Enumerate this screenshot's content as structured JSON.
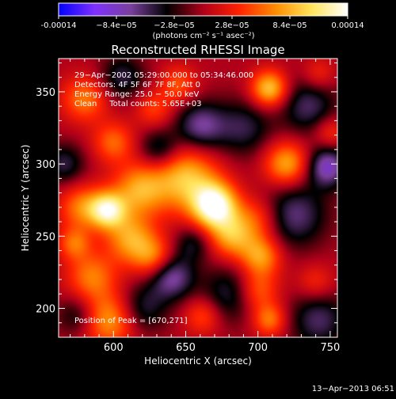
{
  "chart_data": {
    "type": "heatmap",
    "title": "Reconstructed RHESSI Image",
    "xlabel": "Heliocentric X (arcsec)",
    "ylabel": "Heliocentric Y (arcsec)",
    "xlim": [
      562,
      755
    ],
    "ylim": [
      180,
      373
    ],
    "x_ticks": [
      600,
      650,
      700,
      750
    ],
    "y_ticks": [
      200,
      250,
      300,
      350
    ],
    "x_tick_labels": [
      "600",
      "650",
      "700",
      "750"
    ],
    "y_tick_labels": [
      "200",
      "250",
      "300",
      "350"
    ],
    "colorbar": {
      "min": -0.00014,
      "max": 0.00014,
      "ticks": [
        -0.00014,
        -8.4e-05,
        -2.8e-05,
        2.8e-05,
        8.4e-05,
        0.00014
      ],
      "tick_labels": [
        "-0.00014",
        "−8.4e−05",
        "−2.8e−05",
        "2.8e−05",
        "8.4e−05",
        "0.00014"
      ],
      "unit_label": "(photons cm⁻² s⁻¹ asec⁻²)",
      "colors": [
        "#0000ff",
        "#7f30ff",
        "#7a3f9c",
        "#000000",
        "#b0001a",
        "#ff2200",
        "#ff8c00",
        "#ffe45a",
        "#ffffff"
      ]
    },
    "annotations": [
      "29−Apr−2002 05:29:00.000 to 05:34:46.000",
      "Detectors: 4F 5F 6F 7F 8F, Att 0",
      "Energy Range: 25.0 − 50.0 keV",
      "Clean     Total counts: 5.65E+03"
    ],
    "peak_label": "Position of Peak = [670,271]",
    "peak": [
      670,
      271
    ],
    "sources": [
      {
        "x": 670,
        "y": 271,
        "amp": 1.0,
        "sigma": 11
      },
      {
        "x": 650,
        "y": 290,
        "amp": 0.65,
        "sigma": 16
      },
      {
        "x": 618,
        "y": 282,
        "amp": 0.55,
        "sigma": 13
      },
      {
        "x": 596,
        "y": 268,
        "amp": 0.8,
        "sigma": 9
      },
      {
        "x": 578,
        "y": 270,
        "amp": 0.45,
        "sigma": 11
      },
      {
        "x": 612,
        "y": 248,
        "amp": 0.55,
        "sigma": 12
      },
      {
        "x": 628,
        "y": 235,
        "amp": 0.45,
        "sigma": 10
      },
      {
        "x": 682,
        "y": 250,
        "amp": 0.55,
        "sigma": 11
      },
      {
        "x": 700,
        "y": 262,
        "amp": 0.35,
        "sigma": 11
      },
      {
        "x": 702,
        "y": 236,
        "amp": 0.55,
        "sigma": 10
      },
      {
        "x": 720,
        "y": 300,
        "amp": 0.6,
        "sigma": 11
      },
      {
        "x": 708,
        "y": 352,
        "amp": 0.7,
        "sigma": 9
      },
      {
        "x": 580,
        "y": 345,
        "amp": 0.45,
        "sigma": 11
      },
      {
        "x": 600,
        "y": 315,
        "amp": 0.4,
        "sigma": 10
      },
      {
        "x": 645,
        "y": 355,
        "amp": 0.35,
        "sigma": 9
      },
      {
        "x": 585,
        "y": 222,
        "amp": 0.45,
        "sigma": 12
      },
      {
        "x": 573,
        "y": 245,
        "amp": 0.4,
        "sigma": 8
      },
      {
        "x": 597,
        "y": 192,
        "amp": 0.55,
        "sigma": 13
      },
      {
        "x": 700,
        "y": 212,
        "amp": 0.4,
        "sigma": 10
      },
      {
        "x": 708,
        "y": 192,
        "amp": 0.45,
        "sigma": 8
      },
      {
        "x": 662,
        "y": 195,
        "amp": 0.35,
        "sigma": 9
      },
      {
        "x": 742,
        "y": 362,
        "amp": 0.25,
        "sigma": 8
      },
      {
        "x": 750,
        "y": 322,
        "amp": 0.3,
        "sigma": 8
      },
      {
        "x": 740,
        "y": 218,
        "amp": 0.25,
        "sigma": 9
      },
      {
        "x": 628,
        "y": 338,
        "amp": 0.3,
        "sigma": 9
      },
      {
        "x": 606,
        "y": 360,
        "amp": -0.35,
        "sigma": 11
      },
      {
        "x": 632,
        "y": 310,
        "amp": -0.4,
        "sigma": 10
      },
      {
        "x": 660,
        "y": 326,
        "amp": -0.5,
        "sigma": 12
      },
      {
        "x": 640,
        "y": 222,
        "amp": -0.55,
        "sigma": 11
      },
      {
        "x": 725,
        "y": 265,
        "amp": -0.45,
        "sigma": 16
      },
      {
        "x": 748,
        "y": 298,
        "amp": -0.6,
        "sigma": 10
      },
      {
        "x": 735,
        "y": 340,
        "amp": -0.4,
        "sigma": 14
      },
      {
        "x": 690,
        "y": 325,
        "amp": -0.35,
        "sigma": 14
      },
      {
        "x": 620,
        "y": 200,
        "amp": -0.35,
        "sigma": 12
      },
      {
        "x": 680,
        "y": 210,
        "amp": -0.35,
        "sigma": 14
      },
      {
        "x": 742,
        "y": 192,
        "amp": -0.4,
        "sigma": 14
      },
      {
        "x": 566,
        "y": 300,
        "amp": -0.35,
        "sigma": 10
      },
      {
        "x": 575,
        "y": 195,
        "amp": -0.3,
        "sigma": 10
      },
      {
        "x": 655,
        "y": 245,
        "amp": -0.3,
        "sigma": 9
      }
    ]
  },
  "footer": {
    "timestamp": "13−Apr−2013 06:51"
  }
}
